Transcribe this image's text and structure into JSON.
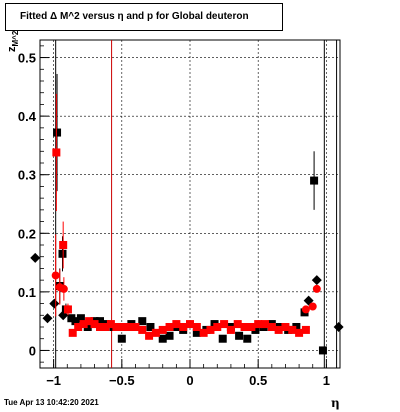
{
  "title": "Fitted Δ M^2 versus η and p for Global deuteron",
  "timestamp": "Tue Apr 13 10:42:20 2021",
  "colors": {
    "black": "#000000",
    "red": "#ff0000",
    "grid": "#000000",
    "cutline": "#cc0000"
  },
  "chart_data": {
    "type": "scatter",
    "title": "Fitted Δ M^2 versus η and p for Global deuteron",
    "xlabel": "η",
    "ylabel": "z_{M^2}",
    "xlim": [
      -1.1,
      1.1
    ],
    "ylim": [
      -0.03,
      0.53
    ],
    "xticks": [
      -1,
      -0.5,
      0,
      0.5,
      1
    ],
    "xtick_labels": [
      "−1",
      "−0.5",
      "0",
      "0.5",
      "1"
    ],
    "yticks": [
      0,
      0.1,
      0.2,
      0.3,
      0.4,
      0.5
    ],
    "ytick_labels": [
      "0",
      "0.1",
      "0.2",
      "0.3",
      "0.4",
      "0.5"
    ],
    "grid": true,
    "vertical_lines": [
      {
        "x": -0.985,
        "color": "black"
      },
      {
        "x": -0.575,
        "color": "red"
      },
      {
        "x": 0.985,
        "color": "black"
      },
      {
        "x": 1.075,
        "color": "black"
      }
    ],
    "series": [
      {
        "marker": "diamond",
        "color": "black",
        "points": [
          {
            "x": -1.135,
            "y": 0.158
          },
          {
            "x": -1.045,
            "y": 0.055
          },
          {
            "x": -0.995,
            "y": 0.08
          },
          {
            "x": -0.93,
            "y": 0.06
          },
          {
            "x": 0.87,
            "y": 0.085
          },
          {
            "x": 0.93,
            "y": 0.12
          },
          {
            "x": 1.09,
            "y": 0.04
          }
        ]
      },
      {
        "marker": "square",
        "color": "black",
        "points": [
          {
            "x": -0.975,
            "y": 0.372,
            "err": 0.1
          },
          {
            "x": -0.955,
            "y": 0.11,
            "err": 0.03
          },
          {
            "x": -0.935,
            "y": 0.165,
            "err": 0.03
          },
          {
            "x": -0.91,
            "y": 0.07,
            "err": 0.01
          },
          {
            "x": -0.87,
            "y": 0.055
          },
          {
            "x": -0.84,
            "y": 0.05
          },
          {
            "x": -0.8,
            "y": 0.055
          },
          {
            "x": -0.75,
            "y": 0.04
          },
          {
            "x": -0.7,
            "y": 0.05
          },
          {
            "x": -0.66,
            "y": 0.05
          },
          {
            "x": -0.62,
            "y": 0.045
          },
          {
            "x": -0.56,
            "y": 0.04
          },
          {
            "x": -0.5,
            "y": 0.02
          },
          {
            "x": -0.43,
            "y": 0.045
          },
          {
            "x": -0.35,
            "y": 0.05
          },
          {
            "x": -0.29,
            "y": 0.04
          },
          {
            "x": -0.2,
            "y": 0.02
          },
          {
            "x": -0.15,
            "y": 0.025
          },
          {
            "x": -0.1,
            "y": 0.04
          },
          {
            "x": -0.05,
            "y": 0.035
          },
          {
            "x": 0.05,
            "y": 0.03
          },
          {
            "x": 0.12,
            "y": 0.035
          },
          {
            "x": 0.18,
            "y": 0.045
          },
          {
            "x": 0.24,
            "y": 0.02
          },
          {
            "x": 0.3,
            "y": 0.04
          },
          {
            "x": 0.36,
            "y": 0.025
          },
          {
            "x": 0.42,
            "y": 0.02
          },
          {
            "x": 0.48,
            "y": 0.035
          },
          {
            "x": 0.54,
            "y": 0.04
          },
          {
            "x": 0.6,
            "y": 0.045
          },
          {
            "x": 0.66,
            "y": 0.04
          },
          {
            "x": 0.72,
            "y": 0.035
          },
          {
            "x": 0.78,
            "y": 0.04
          },
          {
            "x": 0.84,
            "y": 0.065
          },
          {
            "x": 0.91,
            "y": 0.29,
            "err": 0.05
          },
          {
            "x": 0.975,
            "y": 0.0
          }
        ]
      },
      {
        "marker": "circle",
        "color": "red",
        "points": [
          {
            "x": -0.985,
            "y": 0.128,
            "err": 0.07
          },
          {
            "x": -0.955,
            "y": 0.108,
            "err": 0.03
          },
          {
            "x": -0.925,
            "y": 0.105,
            "err": 0.02
          },
          {
            "x": 0.85,
            "y": 0.07
          },
          {
            "x": 0.9,
            "y": 0.075
          },
          {
            "x": 0.93,
            "y": 0.105
          }
        ]
      },
      {
        "marker": "square",
        "color": "red",
        "points": [
          {
            "x": -0.98,
            "y": 0.338,
            "err": 0.1
          },
          {
            "x": -0.93,
            "y": 0.18,
            "err": 0.04
          },
          {
            "x": -0.895,
            "y": 0.07,
            "err": 0.01
          },
          {
            "x": -0.86,
            "y": 0.03
          },
          {
            "x": -0.82,
            "y": 0.04
          },
          {
            "x": -0.78,
            "y": 0.045
          },
          {
            "x": -0.74,
            "y": 0.05
          },
          {
            "x": -0.7,
            "y": 0.045
          },
          {
            "x": -0.66,
            "y": 0.04
          },
          {
            "x": -0.62,
            "y": 0.04
          },
          {
            "x": -0.58,
            "y": 0.045
          },
          {
            "x": -0.54,
            "y": 0.04
          },
          {
            "x": -0.5,
            "y": 0.04
          },
          {
            "x": -0.45,
            "y": 0.04
          },
          {
            "x": -0.4,
            "y": 0.04
          },
          {
            "x": -0.35,
            "y": 0.035
          },
          {
            "x": -0.3,
            "y": 0.025
          },
          {
            "x": -0.25,
            "y": 0.03
          },
          {
            "x": -0.2,
            "y": 0.035
          },
          {
            "x": -0.15,
            "y": 0.04
          },
          {
            "x": -0.1,
            "y": 0.045
          },
          {
            "x": -0.05,
            "y": 0.04
          },
          {
            "x": 0.0,
            "y": 0.045
          },
          {
            "x": 0.05,
            "y": 0.04
          },
          {
            "x": 0.1,
            "y": 0.03
          },
          {
            "x": 0.15,
            "y": 0.035
          },
          {
            "x": 0.2,
            "y": 0.04
          },
          {
            "x": 0.25,
            "y": 0.045
          },
          {
            "x": 0.3,
            "y": 0.035
          },
          {
            "x": 0.35,
            "y": 0.045
          },
          {
            "x": 0.4,
            "y": 0.04
          },
          {
            "x": 0.45,
            "y": 0.04
          },
          {
            "x": 0.5,
            "y": 0.045
          },
          {
            "x": 0.55,
            "y": 0.045
          },
          {
            "x": 0.6,
            "y": 0.04
          },
          {
            "x": 0.65,
            "y": 0.035
          },
          {
            "x": 0.7,
            "y": 0.04
          },
          {
            "x": 0.75,
            "y": 0.035
          },
          {
            "x": 0.8,
            "y": 0.03
          },
          {
            "x": 0.85,
            "y": 0.035
          }
        ]
      }
    ]
  }
}
